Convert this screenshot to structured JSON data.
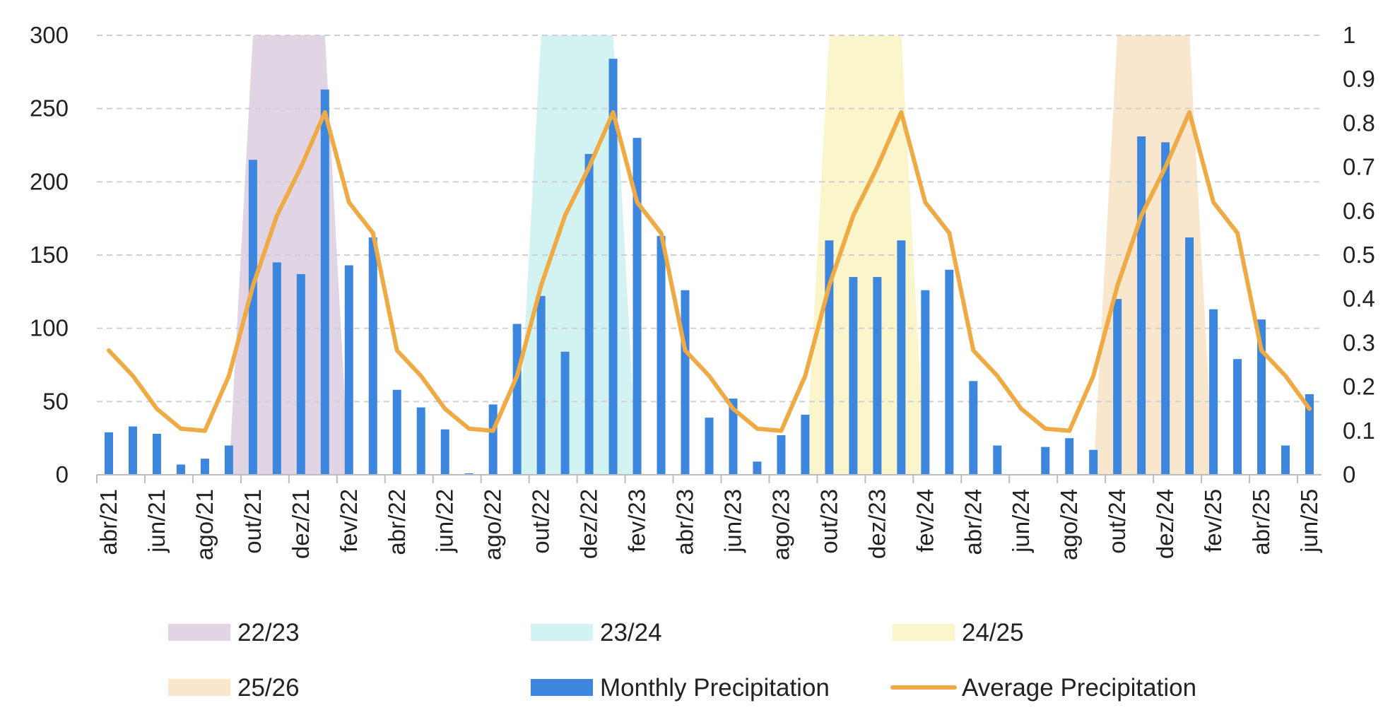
{
  "chart_data": {
    "type": "bar",
    "months": [
      "abr/21",
      "mai/21",
      "jun/21",
      "jul/21",
      "ago/21",
      "set/21",
      "out/21",
      "nov/21",
      "dez/21",
      "jan/22",
      "fev/22",
      "mar/22",
      "abr/22",
      "mai/22",
      "jun/22",
      "jul/22",
      "ago/22",
      "set/22",
      "out/22",
      "nov/22",
      "dez/22",
      "jan/23",
      "fev/23",
      "mar/23",
      "abr/23",
      "mai/23",
      "jun/23",
      "jul/23",
      "ago/23",
      "set/23",
      "out/23",
      "nov/23",
      "dez/23",
      "jan/24",
      "fev/24",
      "mar/24",
      "abr/24",
      "mai/24",
      "jun/24",
      "jul/24",
      "ago/24",
      "set/24",
      "out/24",
      "nov/24",
      "dez/24",
      "jan/25",
      "fev/25",
      "mar/25",
      "abr/25",
      "mai/25",
      "jun/25"
    ],
    "tick_labels": [
      "abr/21",
      "jun/21",
      "ago/21",
      "out/21",
      "dez/21",
      "fev/22",
      "abr/22",
      "jun/22",
      "ago/22",
      "out/22",
      "dez/22",
      "fev/23",
      "abr/23",
      "jun/23",
      "ago/23",
      "out/23",
      "dez/23",
      "fev/24",
      "abr/24",
      "jun/24",
      "ago/24",
      "out/24",
      "dez/24",
      "fev/25",
      "abr/25",
      "jun/25"
    ],
    "y_left": {
      "min": 0,
      "max": 300,
      "ticks": [
        "0",
        "50",
        "100",
        "150",
        "200",
        "250",
        "300"
      ]
    },
    "y_right": {
      "min": 0,
      "max": 1,
      "ticks": [
        "0",
        "0.1",
        "0.2",
        "0.3",
        "0.4",
        "0.5",
        "0.6",
        "0.7",
        "0.8",
        "0.9",
        "1"
      ]
    },
    "grid": true,
    "legend_placement": "bottom",
    "series": [
      {
        "name": "Monthly Precipitation",
        "kind": "bar",
        "axis": "left",
        "color": "#3d86dd",
        "values": [
          29,
          33,
          28,
          7,
          11,
          20,
          215,
          145,
          137,
          263,
          143,
          162,
          58,
          46,
          31,
          1,
          48,
          103,
          122,
          84,
          219,
          284,
          230,
          163,
          126,
          39,
          52,
          9,
          27,
          41,
          160,
          135,
          135,
          160,
          126,
          140,
          64,
          20,
          0,
          19,
          25,
          17,
          120,
          231,
          227,
          162,
          113,
          79,
          106,
          20,
          55
        ]
      },
      {
        "name": "Average Precipitation",
        "kind": "line",
        "axis": "right",
        "color": "#eeaa44",
        "values": [
          0.283,
          0.225,
          0.15,
          0.105,
          0.1,
          0.225,
          0.43,
          0.59,
          0.7,
          0.825,
          0.62,
          0.55,
          0.283,
          0.225,
          0.15,
          0.105,
          0.1,
          0.225,
          0.43,
          0.59,
          0.7,
          0.825,
          0.62,
          0.55,
          0.283,
          0.225,
          0.15,
          0.105,
          0.1,
          0.225,
          0.43,
          0.59,
          0.7,
          0.825,
          0.62,
          0.55,
          0.283,
          0.225,
          0.15,
          0.105,
          0.1,
          0.225,
          0.43,
          0.59,
          0.7,
          0.825,
          0.62,
          0.55,
          0.283,
          0.225,
          0.15
        ]
      }
    ],
    "seasons": [
      {
        "name": "22/23",
        "color": "#e0d4e5",
        "start": "out/21",
        "end": "jan/22",
        "edge_start": "set/21",
        "edge_end": "fev/22"
      },
      {
        "name": "23/24",
        "color": "#d2f3f1",
        "start": "out/22",
        "end": "jan/23",
        "edge_start": "set/22",
        "edge_end": "fev/23"
      },
      {
        "name": "24/25",
        "color": "#fbf5cc",
        "start": "out/23",
        "end": "jan/24",
        "edge_start": "set/23",
        "edge_end": "fev/24"
      },
      {
        "name": "25/26",
        "color": "#f8e6cd",
        "start": "out/24",
        "end": "jan/25",
        "edge_start": "set/24",
        "edge_end": "fev/25"
      }
    ],
    "legend": [
      {
        "label": "22/23",
        "symbol": "area",
        "color": "#e0d4e5"
      },
      {
        "label": "23/24",
        "symbol": "area",
        "color": "#d2f3f1"
      },
      {
        "label": "24/25",
        "symbol": "area",
        "color": "#fbf5cc"
      },
      {
        "label": "25/26",
        "symbol": "area",
        "color": "#f8e6cd"
      },
      {
        "label": "Monthly Precipitation",
        "symbol": "bar",
        "color": "#3d86dd"
      },
      {
        "label": "Average Precipitation",
        "symbol": "line",
        "color": "#eeaa44"
      }
    ]
  }
}
